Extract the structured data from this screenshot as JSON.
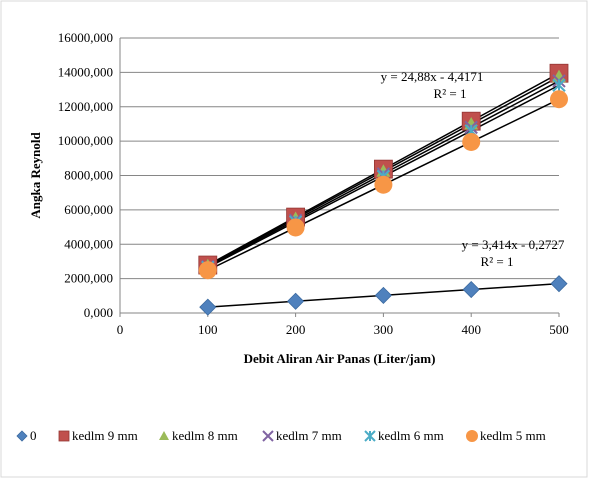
{
  "chart_data": {
    "type": "scatter",
    "title": "",
    "xlabel": "Debit Aliran Air Panas (Liter/jam)",
    "ylabel": "Angka Reynold",
    "xlim": [
      0,
      500
    ],
    "ylim": [
      0,
      16000
    ],
    "x_ticks": [
      "0",
      "100",
      "200",
      "300",
      "400",
      "500"
    ],
    "y_ticks": [
      "0,000",
      "2000,000",
      "4000,000",
      "6000,000",
      "8000,000",
      "10000,000",
      "12000,000",
      "14000,000",
      "16000,000"
    ],
    "grid": "horizontal",
    "legend_position": "bottom",
    "x": [
      100,
      200,
      300,
      400,
      500
    ],
    "series": [
      {
        "name": "0",
        "marker": "diamond",
        "color": "#4F81BD",
        "values": [
          341,
          683,
          1024,
          1366,
          1707
        ]
      },
      {
        "name": "kedlm 9 mm",
        "marker": "square",
        "color": "#C0504D",
        "values": [
          2790,
          5580,
          8370,
          11160,
          13950
        ]
      },
      {
        "name": "kedlm 8 mm",
        "marker": "triangle",
        "color": "#9BBB59",
        "values": [
          2750,
          5500,
          8250,
          11000,
          13750
        ]
      },
      {
        "name": "kedlm 7 mm",
        "marker": "x",
        "color": "#8064A2",
        "values": [
          2700,
          5400,
          8100,
          10800,
          13500
        ]
      },
      {
        "name": "kedlm 6 mm",
        "marker": "star",
        "color": "#4BACC6",
        "values": [
          2650,
          5300,
          7950,
          10600,
          13250
        ]
      },
      {
        "name": "kedlm 5 mm",
        "marker": "circle",
        "color": "#F79646",
        "values": [
          2488,
          4976,
          7464,
          9952,
          12440
        ]
      }
    ],
    "annotations": [
      {
        "equation": "y = 24,88x - 4,4171",
        "r2": "R² = 1"
      },
      {
        "equation": "y = 3,414x - 0,2727",
        "r2": "R² = 1"
      }
    ]
  }
}
